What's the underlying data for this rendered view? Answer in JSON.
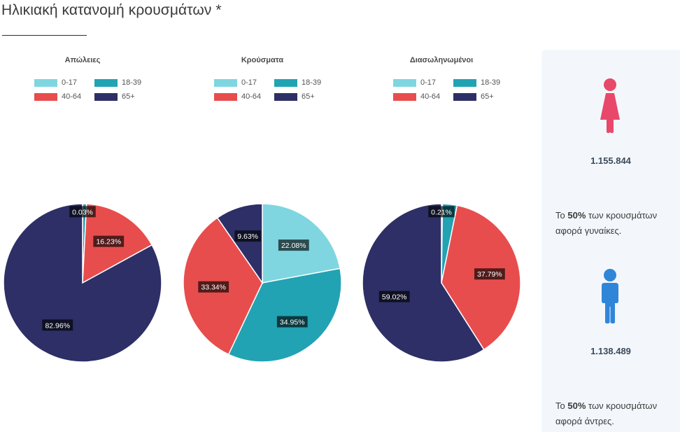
{
  "page": {
    "title": "Ηλικιακή κατανομή κρουσμάτων *"
  },
  "colors": {
    "0-17": "#7fd6e0",
    "18-39": "#21a3b4",
    "40-64": "#e84d4d",
    "65+": "#2d2f66",
    "female": "#e8486a",
    "male": "#2f86d9"
  },
  "chart_data": [
    {
      "type": "pie",
      "title": "Απώλειες",
      "legend": [
        "0-17",
        "18-39",
        "40-64",
        "65+"
      ],
      "legend_position": "top",
      "slices": [
        {
          "label": "0-17",
          "value": 0.03,
          "display": "0.03%"
        },
        {
          "label": "18-39",
          "value": 0.78,
          "display": ""
        },
        {
          "label": "40-64",
          "value": 16.23,
          "display": "16.23%"
        },
        {
          "label": "65+",
          "value": 82.96,
          "display": "82.96%"
        }
      ]
    },
    {
      "type": "pie",
      "title": "Κρούσματα",
      "legend": [
        "0-17",
        "18-39",
        "40-64",
        "65+"
      ],
      "legend_position": "top",
      "slices": [
        {
          "label": "0-17",
          "value": 22.08,
          "display": "22.08%"
        },
        {
          "label": "18-39",
          "value": 34.95,
          "display": "34.95%"
        },
        {
          "label": "40-64",
          "value": 33.34,
          "display": "33.34%"
        },
        {
          "label": "65+",
          "value": 9.63,
          "display": "9.63%"
        }
      ]
    },
    {
      "type": "pie",
      "title": "Διασωληνωμένοι",
      "legend": [
        "0-17",
        "18-39",
        "40-64",
        "65+"
      ],
      "legend_position": "top",
      "slices": [
        {
          "label": "0-17",
          "value": 0.21,
          "display": "0.21%"
        },
        {
          "label": "18-39",
          "value": 2.98,
          "display": ""
        },
        {
          "label": "40-64",
          "value": 37.79,
          "display": "37.79%"
        },
        {
          "label": "65+",
          "value": 59.02,
          "display": "59.02%"
        }
      ]
    }
  ],
  "side_panel": {
    "female": {
      "icon": "female-icon",
      "count": "1.155.844",
      "text_prefix": "Το ",
      "percent": "50%",
      "text_suffix": " των κρουσμάτων",
      "text_line2": "αφορά γυναίκες."
    },
    "male": {
      "icon": "male-icon",
      "count": "1.138.489",
      "text_prefix": "Το ",
      "percent": "50%",
      "text_suffix": " των κρουσμάτων",
      "text_line2": "αφορά άντρες."
    }
  }
}
